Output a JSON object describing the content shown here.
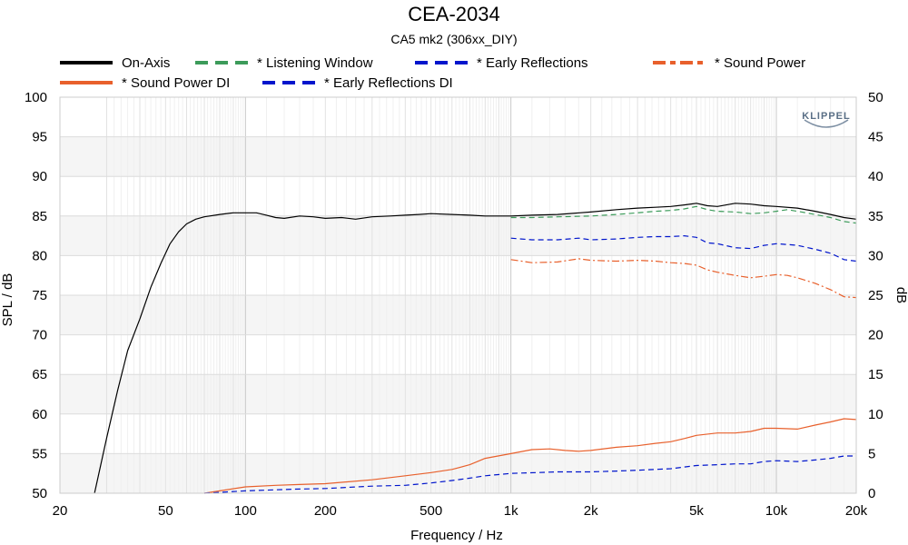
{
  "chart_data": {
    "type": "line",
    "title": "CEA-2034",
    "subtitle": "CA5 mk2 (306xx_DIY)",
    "xlabel": "Frequency / Hz",
    "ylabel": "SPL / dB",
    "y2label": "dB",
    "xscale": "log",
    "xlim": [
      20,
      20000
    ],
    "ylim": [
      50,
      100
    ],
    "y2lim": [
      0,
      50
    ],
    "grid": true,
    "legend_position": "top",
    "logo": "KLIPPEL",
    "x_ticks": [
      {
        "value": 20,
        "label": "20"
      },
      {
        "value": 50,
        "label": "50"
      },
      {
        "value": 100,
        "label": "100"
      },
      {
        "value": 200,
        "label": "200"
      },
      {
        "value": 500,
        "label": "500"
      },
      {
        "value": 1000,
        "label": "1k"
      },
      {
        "value": 2000,
        "label": "2k"
      },
      {
        "value": 5000,
        "label": "5k"
      },
      {
        "value": 10000,
        "label": "10k"
      },
      {
        "value": 20000,
        "label": "20k"
      }
    ],
    "y_ticks": [
      50,
      55,
      60,
      65,
      70,
      75,
      80,
      85,
      90,
      95,
      100
    ],
    "y2_ticks": [
      0,
      5,
      10,
      15,
      20,
      25,
      30,
      35,
      40,
      45,
      50
    ],
    "series": [
      {
        "name": "On-Axis",
        "axis": "left",
        "color": "#000000",
        "dash": "solid",
        "points": [
          [
            27,
            50
          ],
          [
            30,
            57
          ],
          [
            33,
            63
          ],
          [
            36,
            68
          ],
          [
            40,
            72
          ],
          [
            44,
            76
          ],
          [
            48,
            79
          ],
          [
            52,
            81.5
          ],
          [
            56,
            83
          ],
          [
            60,
            84
          ],
          [
            65,
            84.6
          ],
          [
            70,
            84.9
          ],
          [
            80,
            85.2
          ],
          [
            90,
            85.4
          ],
          [
            100,
            85.4
          ],
          [
            110,
            85.4
          ],
          [
            120,
            85.1
          ],
          [
            130,
            84.8
          ],
          [
            140,
            84.7
          ],
          [
            160,
            85.0
          ],
          [
            180,
            84.9
          ],
          [
            200,
            84.7
          ],
          [
            230,
            84.8
          ],
          [
            260,
            84.6
          ],
          [
            300,
            84.9
          ],
          [
            350,
            85.0
          ],
          [
            400,
            85.1
          ],
          [
            450,
            85.2
          ],
          [
            500,
            85.3
          ],
          [
            600,
            85.2
          ],
          [
            700,
            85.1
          ],
          [
            800,
            85.0
          ],
          [
            1000,
            85.0
          ],
          [
            1200,
            85.1
          ],
          [
            1500,
            85.2
          ],
          [
            2000,
            85.5
          ],
          [
            2500,
            85.8
          ],
          [
            3000,
            86.0
          ],
          [
            3500,
            86.1
          ],
          [
            4000,
            86.2
          ],
          [
            4500,
            86.4
          ],
          [
            5000,
            86.6
          ],
          [
            5500,
            86.3
          ],
          [
            6000,
            86.2
          ],
          [
            7000,
            86.6
          ],
          [
            8000,
            86.5
          ],
          [
            9000,
            86.3
          ],
          [
            10000,
            86.2
          ],
          [
            12000,
            86.0
          ],
          [
            14000,
            85.6
          ],
          [
            16000,
            85.2
          ],
          [
            18000,
            84.8
          ],
          [
            20000,
            84.6
          ]
        ]
      },
      {
        "name": "* Listening Window",
        "axis": "left",
        "color": "#3c9b5a",
        "dash": "dashed",
        "points": [
          [
            1000,
            84.8
          ],
          [
            1200,
            84.8
          ],
          [
            1500,
            84.9
          ],
          [
            2000,
            85.0
          ],
          [
            2500,
            85.2
          ],
          [
            3000,
            85.4
          ],
          [
            3500,
            85.6
          ],
          [
            4000,
            85.7
          ],
          [
            4500,
            85.9
          ],
          [
            5000,
            86.2
          ],
          [
            5500,
            85.8
          ],
          [
            6000,
            85.6
          ],
          [
            7000,
            85.5
          ],
          [
            8000,
            85.3
          ],
          [
            9000,
            85.4
          ],
          [
            10000,
            85.6
          ],
          [
            11000,
            85.8
          ],
          [
            12000,
            85.6
          ],
          [
            14000,
            85.2
          ],
          [
            16000,
            84.8
          ],
          [
            18000,
            84.3
          ],
          [
            20000,
            84.1
          ]
        ]
      },
      {
        "name": "* Early Reflections",
        "axis": "left",
        "color": "#0015cc",
        "dash": "dashed",
        "points": [
          [
            1000,
            82.2
          ],
          [
            1200,
            82.0
          ],
          [
            1500,
            82.0
          ],
          [
            1800,
            82.2
          ],
          [
            2000,
            82.0
          ],
          [
            2500,
            82.1
          ],
          [
            3000,
            82.3
          ],
          [
            3500,
            82.4
          ],
          [
            4000,
            82.4
          ],
          [
            4500,
            82.5
          ],
          [
            5000,
            82.3
          ],
          [
            5500,
            81.6
          ],
          [
            6000,
            81.5
          ],
          [
            7000,
            81.0
          ],
          [
            8000,
            80.9
          ],
          [
            9000,
            81.3
          ],
          [
            10000,
            81.5
          ],
          [
            11000,
            81.4
          ],
          [
            12000,
            81.3
          ],
          [
            14000,
            80.8
          ],
          [
            16000,
            80.3
          ],
          [
            18000,
            79.5
          ],
          [
            20000,
            79.3
          ]
        ]
      },
      {
        "name": "* Sound Power",
        "axis": "left",
        "color": "#e8602c",
        "dash": "dashdot",
        "points": [
          [
            1000,
            79.5
          ],
          [
            1200,
            79.1
          ],
          [
            1500,
            79.2
          ],
          [
            1800,
            79.6
          ],
          [
            2000,
            79.4
          ],
          [
            2500,
            79.3
          ],
          [
            3000,
            79.4
          ],
          [
            3500,
            79.3
          ],
          [
            4000,
            79.1
          ],
          [
            4500,
            79.0
          ],
          [
            5000,
            78.8
          ],
          [
            5500,
            78.2
          ],
          [
            6000,
            77.9
          ],
          [
            7000,
            77.5
          ],
          [
            8000,
            77.2
          ],
          [
            9000,
            77.4
          ],
          [
            10000,
            77.6
          ],
          [
            11000,
            77.5
          ],
          [
            12000,
            77.2
          ],
          [
            14000,
            76.5
          ],
          [
            16000,
            75.7
          ],
          [
            18000,
            74.8
          ],
          [
            20000,
            74.7
          ]
        ]
      },
      {
        "name": "* Sound Power DI",
        "axis": "right",
        "color": "#e8602c",
        "dash": "solid",
        "points": [
          [
            70,
            0
          ],
          [
            80,
            0.3
          ],
          [
            100,
            0.8
          ],
          [
            130,
            1.0
          ],
          [
            160,
            1.1
          ],
          [
            200,
            1.2
          ],
          [
            300,
            1.7
          ],
          [
            400,
            2.2
          ],
          [
            500,
            2.6
          ],
          [
            600,
            3.0
          ],
          [
            700,
            3.6
          ],
          [
            800,
            4.4
          ],
          [
            1000,
            5.0
          ],
          [
            1200,
            5.5
          ],
          [
            1400,
            5.6
          ],
          [
            1600,
            5.4
          ],
          [
            1800,
            5.3
          ],
          [
            2000,
            5.4
          ],
          [
            2500,
            5.8
          ],
          [
            3000,
            6.0
          ],
          [
            3500,
            6.3
          ],
          [
            4000,
            6.5
          ],
          [
            4500,
            6.9
          ],
          [
            5000,
            7.3
          ],
          [
            6000,
            7.6
          ],
          [
            7000,
            7.6
          ],
          [
            8000,
            7.8
          ],
          [
            9000,
            8.2
          ],
          [
            10000,
            8.2
          ],
          [
            12000,
            8.1
          ],
          [
            14000,
            8.6
          ],
          [
            16000,
            9.0
          ],
          [
            18000,
            9.4
          ],
          [
            20000,
            9.3
          ]
        ]
      },
      {
        "name": "* Early Reflections DI",
        "axis": "right",
        "color": "#0015cc",
        "dash": "dashed",
        "points": [
          [
            70,
            0
          ],
          [
            100,
            0.3
          ],
          [
            150,
            0.5
          ],
          [
            200,
            0.6
          ],
          [
            300,
            0.9
          ],
          [
            400,
            1.0
          ],
          [
            500,
            1.3
          ],
          [
            600,
            1.6
          ],
          [
            700,
            1.9
          ],
          [
            800,
            2.2
          ],
          [
            1000,
            2.5
          ],
          [
            1500,
            2.7
          ],
          [
            2000,
            2.7
          ],
          [
            2500,
            2.8
          ],
          [
            3000,
            2.9
          ],
          [
            4000,
            3.1
          ],
          [
            5000,
            3.5
          ],
          [
            6000,
            3.6
          ],
          [
            7000,
            3.7
          ],
          [
            8000,
            3.7
          ],
          [
            9000,
            4.0
          ],
          [
            10000,
            4.1
          ],
          [
            12000,
            4.0
          ],
          [
            14000,
            4.2
          ],
          [
            16000,
            4.4
          ],
          [
            18000,
            4.7
          ],
          [
            20000,
            4.7
          ]
        ]
      }
    ]
  }
}
